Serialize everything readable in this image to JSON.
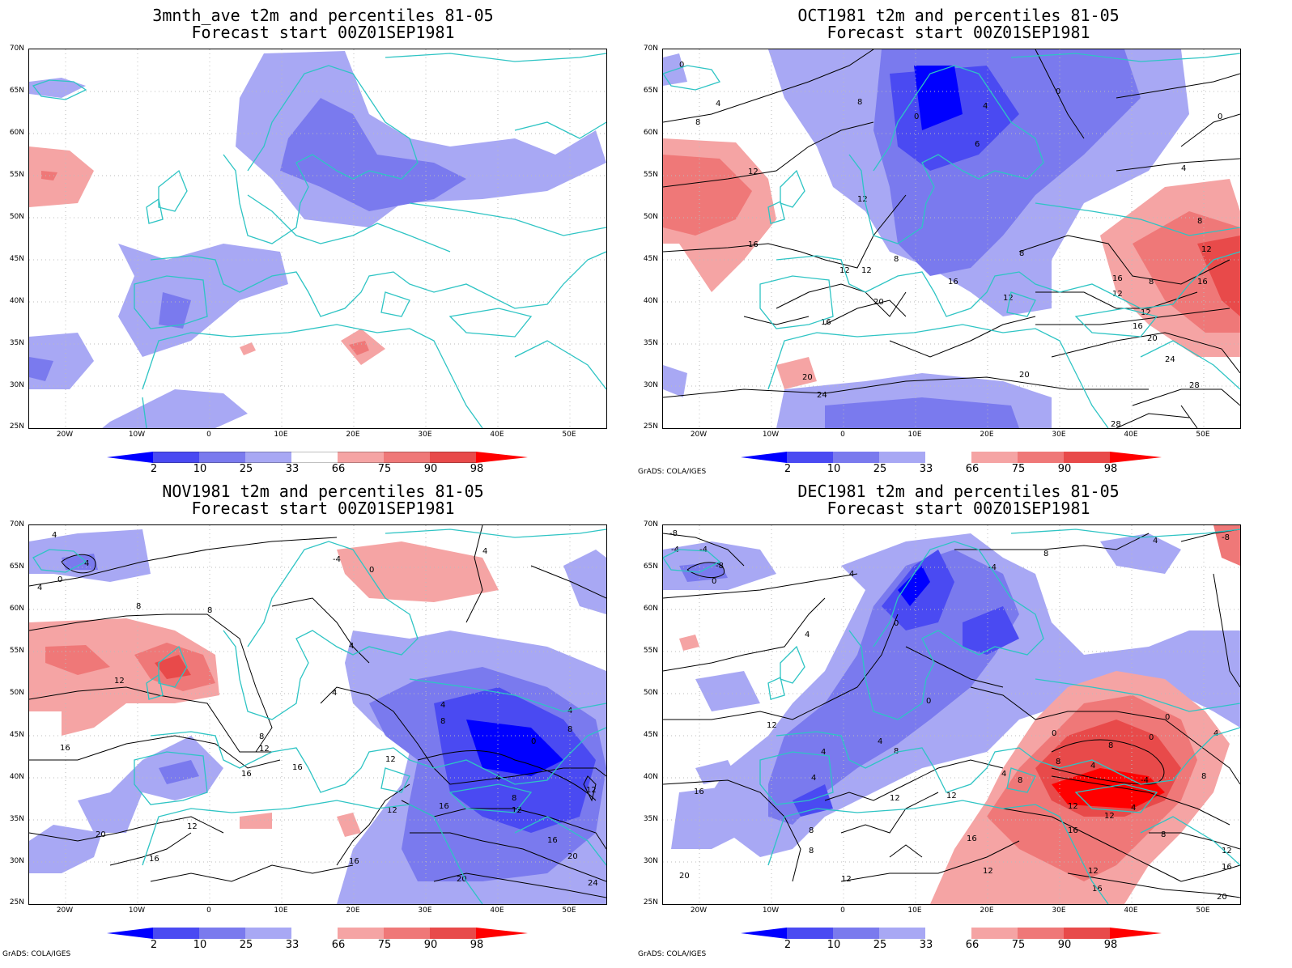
{
  "panels": [
    {
      "title_line1": "3mnth_ave t2m and percentiles 81-05",
      "title_line2": "Forecast start 00Z01SEP1981",
      "show_credit": false
    },
    {
      "title_line1": "OCT1981 t2m and percentiles 81-05",
      "title_line2": "Forecast start 00Z01SEP1981",
      "show_credit": true
    },
    {
      "title_line1": "NOV1981 t2m and percentiles 81-05",
      "title_line2": "Forecast start 00Z01SEP1981",
      "show_credit": true
    },
    {
      "title_line1": "DEC1981 t2m and percentiles 81-05",
      "title_line2": "Forecast start 00Z01SEP1981",
      "show_credit": true
    }
  ],
  "lat_labels": [
    "70N",
    "65N",
    "60N",
    "55N",
    "50N",
    "45N",
    "40N",
    "35N",
    "30N",
    "25N"
  ],
  "lon_labels": [
    "20W",
    "10W",
    "0",
    "10E",
    "20E",
    "30E",
    "40E",
    "50E"
  ],
  "colorbar_labels": [
    "2",
    "10",
    "25",
    "33",
    "66",
    "75",
    "90",
    "98"
  ],
  "colorbar_colors": {
    "blue": [
      "#0000ff",
      "#4a4af2",
      "#7a7aee",
      "#a8a8f4"
    ],
    "red": [
      "#f5a4a4",
      "#ef7878",
      "#e84a4a",
      "#ff0000"
    ]
  },
  "credit": "GrADS: COLA/IGES",
  "map_colors": {
    "coast": "#2ec4c4",
    "contour": "#000000",
    "grid": "#bbbbbb"
  }
}
